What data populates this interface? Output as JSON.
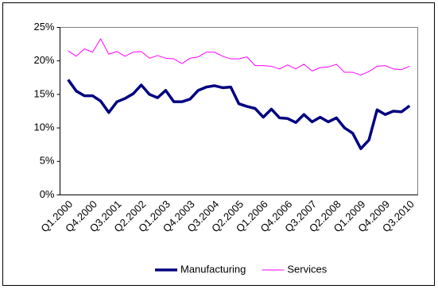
{
  "chart_data": {
    "type": "line",
    "categories": [
      "Q1.2000",
      null,
      null,
      "Q4.2000",
      null,
      null,
      "Q3.2001",
      null,
      null,
      "Q2.2002",
      null,
      null,
      "Q1.2003",
      null,
      null,
      "Q4.2003",
      null,
      null,
      "Q3.2004",
      null,
      null,
      "Q2.2005",
      null,
      null,
      "Q1.2006",
      null,
      null,
      "Q4.2006",
      null,
      null,
      "Q3.2007",
      null,
      null,
      "Q2.2008",
      null,
      null,
      "Q1.2009",
      null,
      null,
      "Q4.2009",
      null,
      null,
      "Q3.2010"
    ],
    "series": [
      {
        "name": "Manufacturing",
        "color": "#000080",
        "values": [
          17.2,
          15.5,
          14.8,
          14.8,
          14.0,
          12.3,
          13.9,
          14.4,
          15.1,
          16.4,
          15.0,
          14.5,
          15.6,
          13.9,
          13.9,
          14.3,
          15.6,
          16.1,
          16.3,
          16.0,
          16.1,
          13.6,
          13.2,
          12.9,
          11.6,
          12.8,
          11.5,
          11.4,
          10.8,
          12.0,
          10.9,
          11.6,
          10.9,
          11.5,
          10.0,
          9.2,
          6.9,
          8.2,
          12.7,
          12.0,
          12.5,
          12.4,
          13.3
        ]
      },
      {
        "name": "Services",
        "color": "#ff00ff",
        "values": [
          21.5,
          20.7,
          21.8,
          21.3,
          23.3,
          21.0,
          21.4,
          20.7,
          21.3,
          21.4,
          20.4,
          20.8,
          20.4,
          20.3,
          19.6,
          20.4,
          20.6,
          21.3,
          21.3,
          20.7,
          20.3,
          20.3,
          20.6,
          19.3,
          19.3,
          19.2,
          18.8,
          19.4,
          18.8,
          19.5,
          18.5,
          19.0,
          19.1,
          19.5,
          18.3,
          18.3,
          17.9,
          18.4,
          19.2,
          19.3,
          18.8,
          18.7,
          19.2
        ]
      }
    ],
    "ylim": [
      0,
      25
    ],
    "yticks": [
      {
        "value": 0,
        "label": "0%"
      },
      {
        "value": 5,
        "label": "5%"
      },
      {
        "value": 10,
        "label": "10%"
      },
      {
        "value": 15,
        "label": "15%"
      },
      {
        "value": 20,
        "label": "20%"
      },
      {
        "value": 25,
        "label": "25%"
      }
    ],
    "legend": "bottom"
  }
}
